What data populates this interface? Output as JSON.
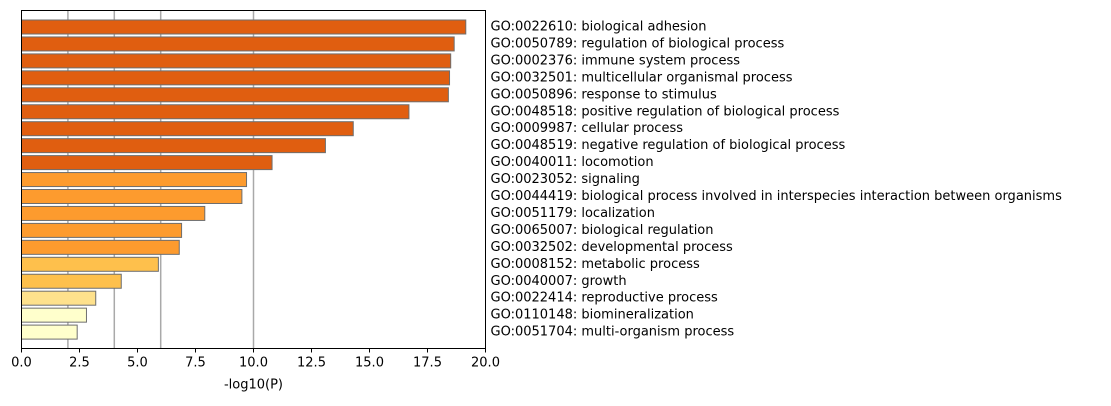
{
  "chart_data": {
    "type": "bar",
    "orientation": "horizontal",
    "title": "",
    "xlabel": "-log10(P)",
    "ylabel": "",
    "xlim": [
      0,
      20
    ],
    "x_ticks": [
      0,
      2.5,
      5,
      7.5,
      10,
      12.5,
      15,
      17.5,
      20
    ],
    "x_tick_labels": [
      "0.0",
      "2.5",
      "5.0",
      "7.5",
      "10.0",
      "12.5",
      "15.0",
      "17.5",
      "20.0"
    ],
    "vertical_reference_lines": [
      2,
      4,
      6,
      10
    ],
    "category_labels_side": "right",
    "grid": false,
    "bars": [
      {
        "label": "GO:0022610: biological adhesion",
        "value": 19.15,
        "color": "#e05e10"
      },
      {
        "label": "GO:0050789: regulation of biological process",
        "value": 18.65,
        "color": "#e05e10"
      },
      {
        "label": "GO:0002376: immune system process",
        "value": 18.5,
        "color": "#e05e10"
      },
      {
        "label": "GO:0032501: multicellular organismal process",
        "value": 18.45,
        "color": "#e05e10"
      },
      {
        "label": "GO:0050896: response to stimulus",
        "value": 18.4,
        "color": "#e05e10"
      },
      {
        "label": "GO:0048518: positive regulation of biological process",
        "value": 16.7,
        "color": "#e05e10"
      },
      {
        "label": "GO:0009987: cellular process",
        "value": 14.3,
        "color": "#e05e10"
      },
      {
        "label": "GO:0048519: negative regulation of biological process",
        "value": 13.1,
        "color": "#e05e10"
      },
      {
        "label": "GO:0040011: locomotion",
        "value": 10.8,
        "color": "#e05e10"
      },
      {
        "label": "GO:0023052: signaling",
        "value": 9.7,
        "color": "#fd9b2e"
      },
      {
        "label": "GO:0044419: biological process involved in interspecies interaction between organisms",
        "value": 9.5,
        "color": "#fd9b2e"
      },
      {
        "label": "GO:0051179: localization",
        "value": 7.9,
        "color": "#fd9b2e"
      },
      {
        "label": "GO:0065007: biological regulation",
        "value": 6.9,
        "color": "#fd9b2e"
      },
      {
        "label": "GO:0032502: developmental process",
        "value": 6.8,
        "color": "#fd9b2e"
      },
      {
        "label": "GO:0008152: metabolic process",
        "value": 5.9,
        "color": "#fec04c"
      },
      {
        "label": "GO:0040007: growth",
        "value": 4.3,
        "color": "#fec04c"
      },
      {
        "label": "GO:0022414: reproductive process",
        "value": 3.2,
        "color": "#fee18c"
      },
      {
        "label": "GO:0110148: biomineralization",
        "value": 2.8,
        "color": "#ffffcc"
      },
      {
        "label": "GO:0051704: multi-organism process",
        "value": 2.4,
        "color": "#ffffcc"
      }
    ]
  }
}
